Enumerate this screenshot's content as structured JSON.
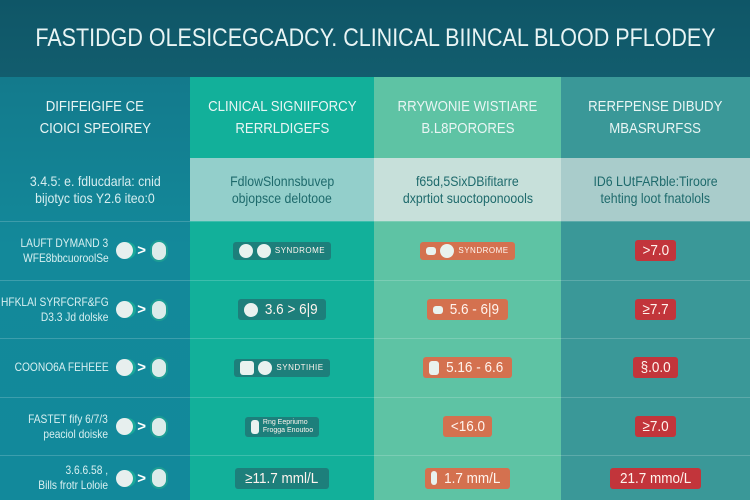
{
  "title": "FASTIDGD OLESICEGCADCY. CLINICAL BIINCAL BLOOD PFLODEY",
  "columns": [
    {
      "header": [
        "DIFIFEIGIFE CE",
        "CIOICI SPEOIREY"
      ],
      "intro": [
        "3.4.5: e. fdlucdarla: cnid",
        "bijotyc tios Y2.6 iteo:0"
      ]
    },
    {
      "header": [
        "CLINICAL SIGNIIFORCY",
        "RERRLDIGEFS"
      ],
      "intro": [
        "FdlowSlonnsbuvep",
        "objopsce delotooe"
      ]
    },
    {
      "header": [
        "RRYWONIE WISTIARE",
        "B.L8PORORES"
      ],
      "intro": [
        "f65d,5SixDBifitarre",
        "dxprtiot suoctoponoools"
      ]
    },
    {
      "header": [
        "RERFPENSE DIBUDY",
        "MBASRURFSS"
      ],
      "intro": [
        "ID6 LUtFARble:Tiroore",
        "tehting loot fnatolols"
      ]
    }
  ],
  "rows": [
    {
      "label": [
        "LAUFT DYMAND 3",
        "WFE8bbcuoroolSe"
      ],
      "clinical": {
        "icon": "stethoscope-icon",
        "text": "SYNDROME",
        "style": "small"
      },
      "range": {
        "icon": "bowl-icon",
        "text": "SYNDROME",
        "style": "small"
      },
      "reference": {
        "text": ">7.0"
      }
    },
    {
      "label": [
        "HFKLAI SYRFCRF&FG",
        "D3.3 Jd dolske"
      ],
      "clinical": {
        "icon": "bowl-icon",
        "text": "3.6 > 6|9",
        "style": "value"
      },
      "range": {
        "icon": "bowl-icon",
        "text": "5.6 - 6|9",
        "style": "value"
      },
      "reference": {
        "text": "≥7.7"
      }
    },
    {
      "label": [
        "COONO6A FEHEEE"
      ],
      "clinical": {
        "icon": "person-icon",
        "text": "SYNDTIHIE",
        "style": "small"
      },
      "range": {
        "icon": "plant-icon",
        "text": "5.16 - 6.6",
        "style": "value"
      },
      "reference": {
        "text": "§.0.0"
      }
    },
    {
      "label": [
        "FASTET fify 6/7/3",
        "peaciol doiske"
      ],
      "clinical": {
        "icon": "figure-icon",
        "text": [
          "Rng Eepriumo",
          "Frogga Enoutoo"
        ],
        "style": "tiny"
      },
      "range": {
        "icon": "needle-icon",
        "text": "<16.0",
        "style": "value"
      },
      "reference": {
        "text": "≥7.0"
      }
    },
    {
      "label": [
        "3.6.6.58 ,",
        "Bills frotr Loloie"
      ],
      "clinical": {
        "icon": "none",
        "text": "≥11.7 mml/L",
        "style": "value"
      },
      "range": {
        "icon": "person-icon",
        "text": "1.7 mm/L",
        "style": "value"
      },
      "reference": {
        "text": "21.7 mmo/L"
      }
    }
  ],
  "colors": {
    "title_bg": "#0f5667",
    "col_difference": "#13899a",
    "col_clinical": "#12b09a",
    "col_range": "#5ec3a4",
    "col_reference": "#3a9898",
    "badge_teal": "#1d7f7b",
    "badge_orange": "#d4714f",
    "badge_red": "#c2353b"
  }
}
